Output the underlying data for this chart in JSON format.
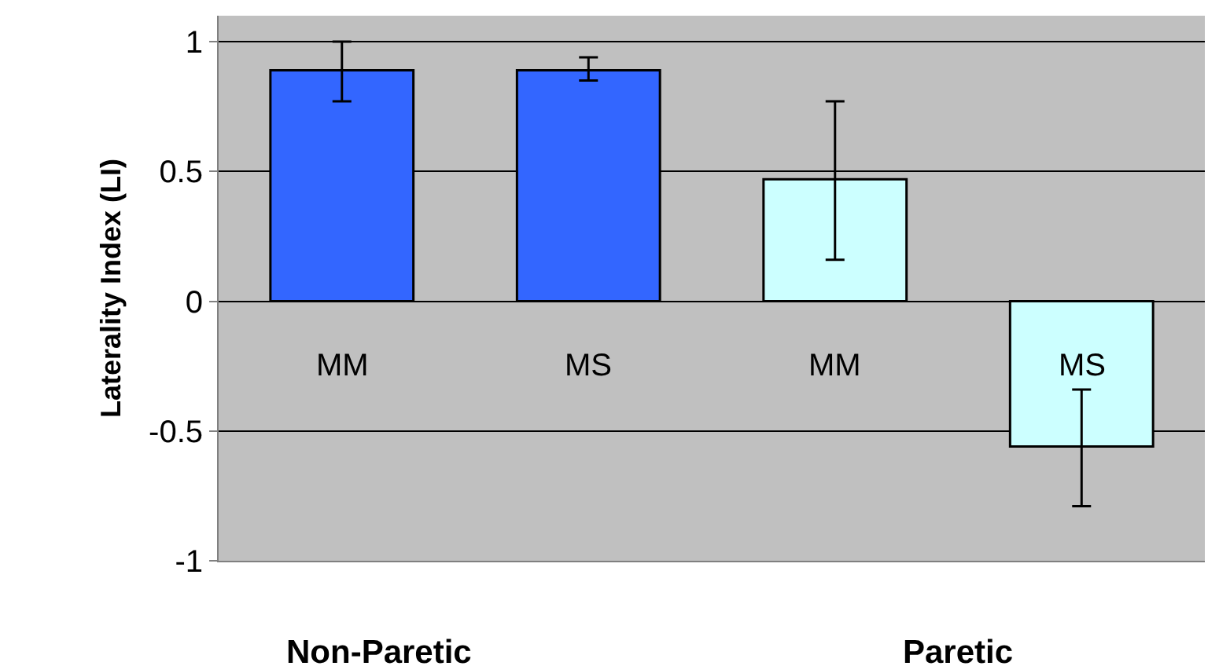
{
  "chart_data": {
    "type": "bar",
    "ylabel": "Laterality Index (LI)",
    "categories": [
      "MM",
      "MS",
      "MM",
      "MS"
    ],
    "values": [
      0.89,
      0.89,
      0.47,
      -0.56
    ],
    "colors": [
      "#3366ff",
      "#3366ff",
      "#ccffff",
      "#ccffff"
    ],
    "errors": [
      [
        0.77,
        1.0
      ],
      [
        0.85,
        0.94
      ],
      [
        0.16,
        0.77
      ],
      [
        -0.79,
        -0.34
      ]
    ],
    "ylim": [
      -1,
      1.1
    ],
    "yticks": [
      -1,
      -0.5,
      0,
      0.5,
      1
    ],
    "grid": "y",
    "annotations": [
      "Non-Paretic",
      "Paretic"
    ]
  }
}
